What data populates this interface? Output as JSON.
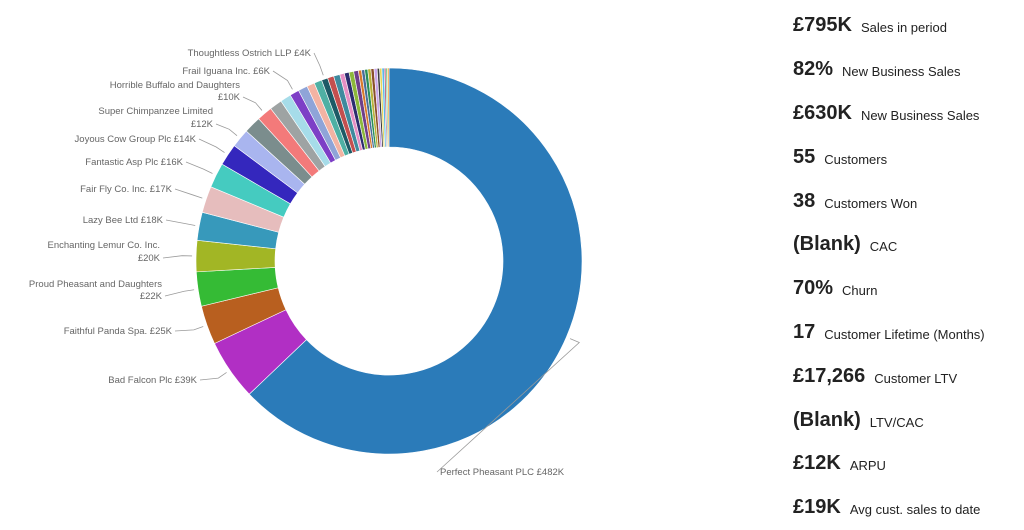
{
  "colors": {
    "background": "#ffffff",
    "label_text": "#666666",
    "kpi_text": "#222222"
  },
  "chart_data": {
    "type": "pie",
    "donut": true,
    "unit": "£K",
    "slices": [
      {
        "name": "Perfect Pheasant PLC",
        "value": 482,
        "label": "Perfect Pheasant PLC £482K",
        "color": "#2b7bb9"
      },
      {
        "name": "Bad Falcon Plc",
        "value": 39,
        "label": "Bad Falcon Plc £39K",
        "color": "#b12fc4"
      },
      {
        "name": "Faithful Panda Spa.",
        "value": 25,
        "label": "Faithful Panda Spa. £25K",
        "color": "#b85f1f"
      },
      {
        "name": "Proud Pheasant and Daughters",
        "value": 22,
        "label": "Proud Pheasant and Daughters £22K",
        "color": "#35bb35"
      },
      {
        "name": "Enchanting Lemur Co. Inc.",
        "value": 20,
        "label": "Enchanting Lemur Co. Inc. £20K",
        "color": "#a2b625"
      },
      {
        "name": "Lazy Bee Ltd",
        "value": 18,
        "label": "Lazy Bee Ltd £18K",
        "color": "#3799bb"
      },
      {
        "name": "Fair Fly Co. Inc.",
        "value": 17,
        "label": "Fair Fly Co. Inc. £17K",
        "color": "#e6bdbd"
      },
      {
        "name": "Fantastic Asp Plc",
        "value": 16,
        "label": "Fantastic Asp Plc £16K",
        "color": "#45cbc0"
      },
      {
        "name": "Joyous Cow Group Plc",
        "value": 14,
        "label": "Joyous Cow Group Plc £14K",
        "color": "#3427bd"
      },
      {
        "name": "Super Chimpanzee Limited",
        "value": 12,
        "label": "Super Chimpanzee Limited £12K",
        "color": "#a9b5ef"
      },
      {
        "name": "Unlabeled 1",
        "value": 11,
        "label": "",
        "color": "#7b8d8d"
      },
      {
        "name": "Horrible Buffalo and Daughters",
        "value": 10,
        "label": "Horrible Buffalo and Daughters £10K",
        "color": "#f37a7a"
      },
      {
        "name": "Unlabeled 2",
        "value": 8,
        "label": "",
        "color": "#9ea3a3"
      },
      {
        "name": "Unlabeled 3",
        "value": 7,
        "label": "",
        "color": "#a6dce9"
      },
      {
        "name": "Frail Iguana Inc.",
        "value": 6,
        "label": "Frail Iguana Inc. £6K",
        "color": "#7d3fc6"
      },
      {
        "name": "Unlabeled 4",
        "value": 6,
        "label": "",
        "color": "#8fa4d8"
      },
      {
        "name": "Unlabeled 5",
        "value": 5,
        "label": "",
        "color": "#f3b3a3"
      },
      {
        "name": "Unlabeled 6",
        "value": 5,
        "label": "",
        "color": "#4fb0a4"
      },
      {
        "name": "Thoughtless Ostrich LLP",
        "value": 4,
        "label": "Thoughtless Ostrich LLP £4K",
        "color": "#1d5a66"
      },
      {
        "name": "Unlabeled 7",
        "value": 4,
        "label": "",
        "color": "#c44f4f"
      },
      {
        "name": "Unlabeled 8",
        "value": 4,
        "label": "",
        "color": "#3e8a9e"
      },
      {
        "name": "Unlabeled 9",
        "value": 3,
        "label": "",
        "color": "#e58fc4"
      },
      {
        "name": "Unlabeled 10",
        "value": 3,
        "label": "",
        "color": "#2c2c6e"
      },
      {
        "name": "Unlabeled 11",
        "value": 3,
        "label": "",
        "color": "#8cb83a"
      },
      {
        "name": "Unlabeled 12",
        "value": 3,
        "label": "",
        "color": "#6e3f8a"
      },
      {
        "name": "Unlabeled 13",
        "value": 2,
        "label": "",
        "color": "#d97a2b"
      },
      {
        "name": "Unlabeled 14",
        "value": 2,
        "label": "",
        "color": "#4a6d9a"
      },
      {
        "name": "Unlabeled 15",
        "value": 2,
        "label": "",
        "color": "#2a8f58"
      },
      {
        "name": "Unlabeled 16",
        "value": 2,
        "label": "",
        "color": "#b8b23a"
      },
      {
        "name": "Unlabeled 17",
        "value": 2,
        "label": "",
        "color": "#8a4f2b"
      },
      {
        "name": "Unlabeled 18",
        "value": 2,
        "label": "",
        "color": "#c8a6e8"
      },
      {
        "name": "Unlabeled 19",
        "value": 1.5,
        "label": "",
        "color": "#3b3b3b"
      },
      {
        "name": "Unlabeled 20",
        "value": 1.5,
        "label": "",
        "color": "#e6d75a"
      },
      {
        "name": "Unlabeled 21",
        "value": 1.5,
        "label": "",
        "color": "#5ab8e6"
      },
      {
        "name": "Unlabeled 22",
        "value": 1,
        "label": "",
        "color": "#a63a6e"
      },
      {
        "name": "Unlabeled 23",
        "value": 1,
        "label": "",
        "color": "#6ec86e"
      },
      {
        "name": "Unlabeled 24",
        "value": 1,
        "label": "",
        "color": "#f0a030"
      }
    ]
  },
  "kpis": [
    {
      "value": "£795K",
      "label": "Sales in period"
    },
    {
      "value": "82%",
      "label": "New Business Sales"
    },
    {
      "value": "£630K",
      "label": "New Business Sales"
    },
    {
      "value": "55",
      "label": "Customers"
    },
    {
      "value": "38",
      "label": "Customers Won"
    },
    {
      "value": "(Blank)",
      "label": "CAC"
    },
    {
      "value": "70%",
      "label": "Churn"
    },
    {
      "value": "17",
      "label": "Customer Lifetime (Months)"
    },
    {
      "value": "£17,266",
      "label": "Customer LTV"
    },
    {
      "value": "(Blank)",
      "label": "LTV/CAC"
    },
    {
      "value": "£12K",
      "label": "ARPU"
    },
    {
      "value": "£19K",
      "label": "Avg cust. sales to date"
    }
  ]
}
